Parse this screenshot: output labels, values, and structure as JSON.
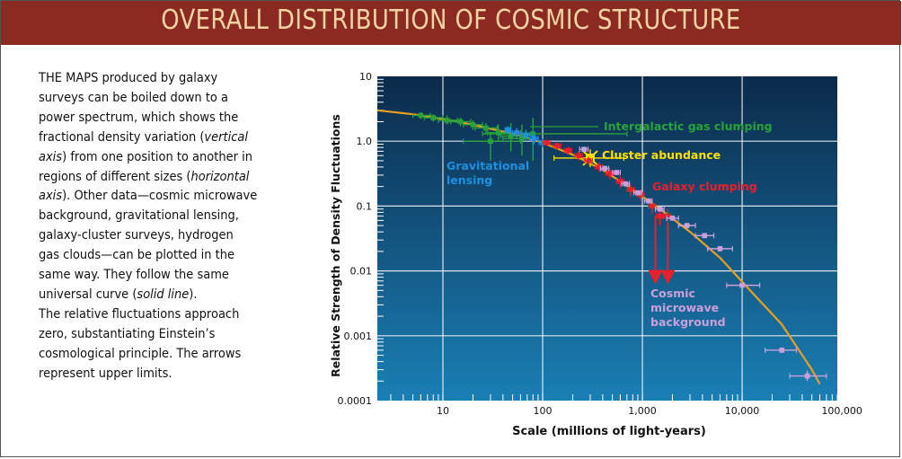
{
  "title": "OVERALL DISTRIBUTION OF COSMIC STRUCTURE",
  "caption_lines": [
    {
      "text": "THE MAPS produced by galaxy"
    },
    {
      "text": "surveys can be boiled down to a"
    },
    {
      "text": "power spectrum, which shows the"
    },
    {
      "pre": "fractional density variation (",
      "it": "vertical",
      "post": ""
    },
    {
      "pre": "",
      "it": "axis",
      "post": ") from one position to another in"
    },
    {
      "text": "regions of different sizes ("
    },
    {
      "pre": "",
      "it": "axis",
      "post": "). Other data—cosmic microwave"
    },
    {
      "text": "background, gravitational lensing,"
    },
    {
      "text": "galaxy-cluster surveys, hydrogen"
    },
    {
      "text": "gas clouds—can be plotted in the"
    },
    {
      "text": "same way. They follow the same"
    },
    {
      "pre": "universal curve (",
      "it": "solid line",
      "post": ")."
    },
    {
      "text": "The relative fluctuations approach"
    },
    {
      "text": "zero, substantiating Einstein’s"
    },
    {
      "text": "cosmological principle. The arrows"
    },
    {
      "text": "represent upper limits."
    }
  ],
  "caption_line6_italic": "horizontal",
  "colors": {
    "title_bg": "#8b2a20",
    "title_text": "#f5d3a4",
    "plot_bg_top": "#0c2a4a",
    "plot_bg_bottom": "#1a7fb5",
    "curve": "#e8a020",
    "gas": "#2aa23a",
    "lensing": "#1e90e0",
    "cluster": "#ffe000",
    "galaxy": "#e8202a",
    "cmb": "#c9a0dc"
  },
  "chart_data": {
    "type": "scatter",
    "xlabel": "Scale (millions of light-years)",
    "ylabel": "Relative Strength of Density Fluctuations",
    "x_scale": "log",
    "y_scale": "log",
    "xlim": [
      2.2,
      90000
    ],
    "ylim": [
      0.0001,
      10
    ],
    "x_ticks": [
      {
        "v": 10,
        "label": "10"
      },
      {
        "v": 100,
        "label": "100"
      },
      {
        "v": 1000,
        "label": "1,000"
      },
      {
        "v": 10000,
        "label": "10,000"
      },
      {
        "v": 100000,
        "label": "100,000"
      }
    ],
    "y_ticks": [
      {
        "v": 10,
        "label": "10"
      },
      {
        "v": 1,
        "label": "1.0"
      },
      {
        "v": 0.1,
        "label": "0.1"
      },
      {
        "v": 0.01,
        "label": "0.01"
      },
      {
        "v": 0.001,
        "label": "0.001"
      },
      {
        "v": 0.0001,
        "label": "0.0001"
      }
    ],
    "grid": true,
    "curve": [
      [
        2.2,
        3.0
      ],
      [
        5,
        2.6
      ],
      [
        10,
        2.2
      ],
      [
        20,
        1.8
      ],
      [
        50,
        1.3
      ],
      [
        100,
        0.95
      ],
      [
        200,
        0.62
      ],
      [
        400,
        0.36
      ],
      [
        800,
        0.18
      ],
      [
        1500,
        0.09
      ],
      [
        3000,
        0.04
      ],
      [
        6000,
        0.016
      ],
      [
        12000,
        0.005
      ],
      [
        25000,
        0.0015
      ],
      [
        50000,
        0.0003
      ],
      [
        60000,
        0.00018
      ]
    ],
    "series": [
      {
        "name": "Intergalactic gas clumping",
        "color_key": "gas",
        "points": [
          {
            "x": 6,
            "y": 2.5,
            "xerr": [
              5,
              7.5
            ],
            "yerr": [
              2.2,
              2.8
            ]
          },
          {
            "x": 8,
            "y": 2.3,
            "xerr": [
              6.5,
              10
            ],
            "yerr": [
              2.0,
              2.6
            ]
          },
          {
            "x": 11,
            "y": 2.1,
            "xerr": [
              9,
              14
            ],
            "yerr": [
              1.8,
              2.5
            ]
          },
          {
            "x": 15,
            "y": 2.0,
            "xerr": [
              12,
              19
            ],
            "yerr": [
              1.7,
              2.3
            ]
          },
          {
            "x": 20,
            "y": 1.8,
            "xerr": [
              16,
              25
            ],
            "yerr": [
              1.5,
              2.1
            ]
          },
          {
            "x": 27,
            "y": 1.6,
            "xerr": [
              21,
              35
            ],
            "yerr": [
              1.3,
              1.9
            ]
          },
          {
            "x": 36,
            "y": 1.35,
            "xerr": [
              28,
              46
            ],
            "yerr": [
              1.0,
              1.8
            ]
          },
          {
            "x": 48,
            "y": 1.2,
            "xerr": [
              38,
              62
            ],
            "yerr": [
              0.7,
              1.9
            ]
          },
          {
            "x": 62,
            "y": 1.1,
            "xerr": [
              40,
              90
            ],
            "yerr": [
              0.6,
              1.8
            ]
          },
          {
            "x": 80,
            "y": 1.3,
            "xerr": [
              25,
              700
            ],
            "yerr": [
              0.5,
              2.3
            ]
          },
          {
            "x": 30,
            "y": 1.0,
            "xerr": [
              16,
              60
            ],
            "yerr": [
              0.5,
              1.4
            ]
          }
        ]
      },
      {
        "name": "Gravitational lensing",
        "color_key": "lensing",
        "points": [
          {
            "x": 45,
            "y": 1.5,
            "xerr": [
              42,
              48
            ],
            "yerr": [
              1.3,
              1.7
            ]
          },
          {
            "x": 55,
            "y": 1.35,
            "xerr": [
              50,
              60
            ],
            "yerr": [
              1.1,
              1.6
            ]
          },
          {
            "x": 68,
            "y": 1.25,
            "xerr": [
              62,
              74
            ],
            "yerr": [
              1.0,
              1.5
            ]
          },
          {
            "x": 82,
            "y": 1.1,
            "xerr": [
              75,
              90
            ],
            "yerr": [
              0.9,
              1.3
            ]
          },
          {
            "x": 100,
            "y": 0.95,
            "xerr": [
              92,
              108
            ],
            "yerr": [
              0.8,
              1.1
            ]
          }
        ]
      },
      {
        "name": "Cluster abundance",
        "color_key": "cluster",
        "points": [
          {
            "x": 300,
            "y": 0.55,
            "xerr": [
              130,
              650
            ],
            "yerr": [
              0.4,
              0.75
            ]
          }
        ]
      },
      {
        "name": "Galaxy clumping",
        "color_key": "galaxy",
        "points": [
          {
            "x": 110,
            "y": 0.95,
            "xerr": [
              100,
              120
            ],
            "yerr": [
              0.85,
              1.05
            ]
          },
          {
            "x": 140,
            "y": 0.85,
            "xerr": [
              128,
              152
            ],
            "yerr": [
              0.75,
              0.95
            ]
          },
          {
            "x": 180,
            "y": 0.72,
            "xerr": [
              165,
              195
            ],
            "yerr": [
              0.62,
              0.82
            ]
          },
          {
            "x": 230,
            "y": 0.6,
            "xerr": [
              210,
              250
            ],
            "yerr": [
              0.5,
              0.7
            ]
          },
          {
            "x": 290,
            "y": 0.5,
            "xerr": [
              265,
              315
            ],
            "yerr": [
              0.42,
              0.58
            ]
          },
          {
            "x": 370,
            "y": 0.4,
            "xerr": [
              340,
              400
            ],
            "yerr": [
              0.33,
              0.47
            ]
          },
          {
            "x": 470,
            "y": 0.32,
            "xerr": [
              430,
              510
            ],
            "yerr": [
              0.26,
              0.38
            ]
          },
          {
            "x": 600,
            "y": 0.24,
            "xerr": [
              550,
              650
            ],
            "yerr": [
              0.19,
              0.29
            ]
          },
          {
            "x": 760,
            "y": 0.18,
            "xerr": [
              700,
              830
            ],
            "yerr": [
              0.14,
              0.22
            ]
          },
          {
            "x": 960,
            "y": 0.15,
            "xerr": [
              880,
              1040
            ],
            "yerr": [
              0.12,
              0.18
            ]
          },
          {
            "x": 1250,
            "y": 0.1,
            "xerr": [
              1150,
              1350
            ],
            "yerr": [
              0.075,
              0.13
            ]
          },
          {
            "x": 1500,
            "y": 0.07,
            "xerr": [
              1380,
              1620
            ],
            "yerr": [
              0.05,
              0.09
            ]
          },
          {
            "x": 1800,
            "y": 0.07,
            "xerr": [
              1650,
              1950
            ],
            "yerr": [
              0.05,
              0.09
            ]
          }
        ],
        "upper_limits": [
          {
            "x": 1350,
            "y_top": 0.07,
            "y_bottom": 0.008
          },
          {
            "x": 1800,
            "y_top": 0.055,
            "y_bottom": 0.008
          }
        ]
      },
      {
        "name": "Cosmic microwave background",
        "color_key": "cmb",
        "points": [
          {
            "x": 260,
            "y": 0.75,
            "xerr": [
              235,
              285
            ],
            "yerr": [
              0.7,
              0.8
            ]
          },
          {
            "x": 420,
            "y": 0.38,
            "xerr": [
              380,
              460
            ],
            "yerr": [
              0.35,
              0.42
            ]
          },
          {
            "x": 550,
            "y": 0.33,
            "xerr": [
              500,
              600
            ],
            "yerr": [
              0.3,
              0.36
            ]
          },
          {
            "x": 680,
            "y": 0.22,
            "xerr": [
              620,
              740
            ],
            "yerr": [
              0.2,
              0.24
            ]
          },
          {
            "x": 900,
            "y": 0.16,
            "xerr": [
              820,
              980
            ],
            "yerr": [
              0.15,
              0.17
            ]
          },
          {
            "x": 1150,
            "y": 0.12,
            "xerr": [
              1050,
              1250
            ],
            "yerr": [
              0.11,
              0.13
            ]
          },
          {
            "x": 1500,
            "y": 0.09,
            "xerr": [
              1350,
              1650
            ],
            "yerr": [
              0.082,
              0.098
            ]
          },
          {
            "x": 2000,
            "y": 0.065,
            "xerr": [
              1750,
              2300
            ],
            "yerr": [
              0.06,
              0.07
            ]
          },
          {
            "x": 2800,
            "y": 0.05,
            "xerr": [
              2300,
              3400
            ],
            "yerr": [
              0.045,
              0.055
            ]
          },
          {
            "x": 4200,
            "y": 0.035,
            "xerr": [
              3400,
              5200
            ],
            "yerr": [
              0.032,
              0.038
            ]
          },
          {
            "x": 6000,
            "y": 0.022,
            "xerr": [
              4500,
              8000
            ],
            "yerr": [
              0.02,
              0.024
            ]
          },
          {
            "x": 10000,
            "y": 0.006,
            "xerr": [
              7000,
              15000
            ],
            "yerr": [
              0.0055,
              0.0065
            ]
          },
          {
            "x": 25000,
            "y": 0.0006,
            "xerr": [
              17000,
              35000
            ],
            "yerr": [
              0.00054,
              0.00066
            ]
          },
          {
            "x": 45000,
            "y": 0.00024,
            "xerr": [
              30000,
              70000
            ],
            "yerr": [
              0.0002,
              0.00029
            ]
          }
        ]
      }
    ],
    "annotations": [
      {
        "text": "Intergalactic gas clumping",
        "color_key": "gas"
      },
      {
        "text": "Cluster abundance",
        "color_key": "cluster"
      },
      {
        "text": "Galaxy clumping",
        "color_key": "galaxy"
      },
      {
        "lines": [
          "Gravitational",
          "lensing"
        ],
        "color_key": "lensing"
      },
      {
        "lines": [
          "Cosmic",
          "microwave",
          "background"
        ],
        "color_key": "cmb"
      }
    ]
  }
}
